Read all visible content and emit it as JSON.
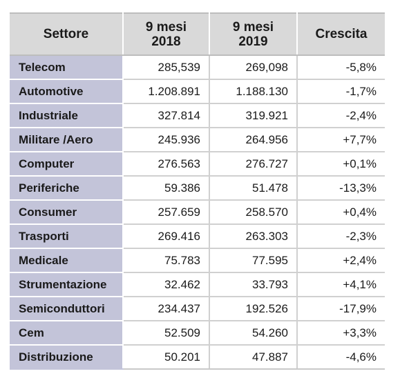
{
  "header": {
    "col1": "Settore",
    "col2_line1": "9 mesi",
    "col2_line2": "2018",
    "col3_line1": "9 mesi",
    "col3_line2": "2019",
    "col4": "Crescita"
  },
  "rows": [
    {
      "sector": "Telecom",
      "v2018": "285,539",
      "v2019": "269,098",
      "growth": "-5,8%"
    },
    {
      "sector": "Automotive",
      "v2018": "1.208.891",
      "v2019": "1.188.130",
      "growth": "-1,7%"
    },
    {
      "sector": "Industriale",
      "v2018": "327.814",
      "v2019": "319.921",
      "growth": "-2,4%"
    },
    {
      "sector": "Militare /Aero",
      "v2018": "245.936",
      "v2019": "264.956",
      "growth": "+7,7%"
    },
    {
      "sector": "Computer",
      "v2018": "276.563",
      "v2019": "276.727",
      "growth": "+0,1%"
    },
    {
      "sector": "Periferiche",
      "v2018": "59.386",
      "v2019": "51.478",
      "growth": "-13,3%"
    },
    {
      "sector": "Consumer",
      "v2018": "257.659",
      "v2019": "258.570",
      "growth": "+0,4%"
    },
    {
      "sector": "Trasporti",
      "v2018": "269.416",
      "v2019": "263.303",
      "growth": "-2,3%"
    },
    {
      "sector": "Medicale",
      "v2018": "75.783",
      "v2019": "77.595",
      "growth": "+2,4%"
    },
    {
      "sector": "Strumentazione",
      "v2018": "32.462",
      "v2019": "33.793",
      "growth": "+4,1%"
    },
    {
      "sector": "Semiconduttori",
      "v2018": "234.437",
      "v2019": "192.526",
      "growth": "-17,9%"
    },
    {
      "sector": "Cem",
      "v2018": "52.509",
      "v2019": "54.260",
      "growth": "+3,3%"
    },
    {
      "sector": "Distribuzione",
      "v2018": "50.201",
      "v2019": "47.887",
      "growth": "-4,6%"
    }
  ]
}
